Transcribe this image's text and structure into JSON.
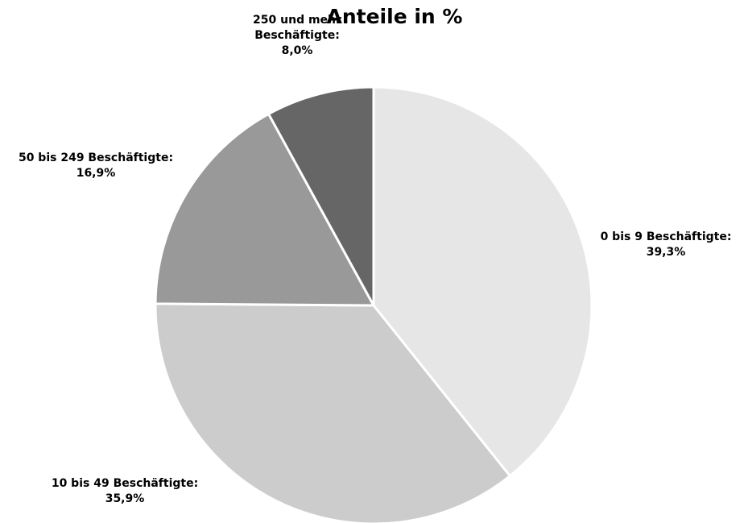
{
  "chart_data": {
    "type": "pie",
    "title_line_1": "",
    "title": "Anteile in %",
    "start_angle_deg": 0,
    "direction": "clockwise",
    "slices": [
      {
        "label": "0 bis 9 Beschäftigte:",
        "value": 39.3,
        "value_text": "39,3%",
        "color": "#e6e6e6"
      },
      {
        "label": "10 bis 49 Beschäftigte:",
        "value": 35.9,
        "value_text": "35,9%",
        "color": "#cccccc"
      },
      {
        "label": "50 bis 249 Beschäftigte:",
        "value": 16.9,
        "value_text": "16,9%",
        "color": "#999999"
      },
      {
        "label": "250 und mehr Beschäftigte:",
        "label_lines": [
          "250 und mehr",
          "Beschäftigte:"
        ],
        "value": 8.0,
        "value_text": "8,0%",
        "color": "#666666"
      }
    ],
    "slice_border_color": "#ffffff",
    "legend": "none"
  }
}
